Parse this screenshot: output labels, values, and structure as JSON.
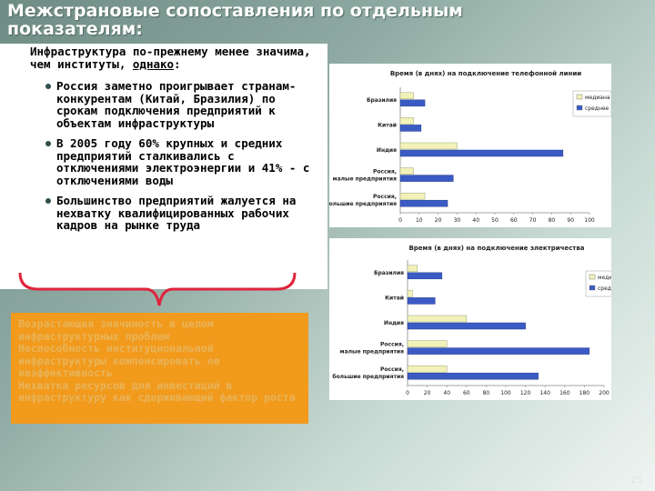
{
  "slide": {
    "title": "Межстрановые сопоставления по отдельным показателям:",
    "intro_before": "Инфраструктура по-прежнему менее значима, чем институты, ",
    "intro_underlined": "однако",
    "intro_after": ":",
    "bullets": [
      "Россия заметно проигрывает странам-конкурентам (Китай, Бразилия) по срокам подключения предприятий к объектам инфраструктуры",
      "В 2005 году 60% крупных и средних предприятий сталкивались с отключениями электроэнергии и 41% - с отключениями воды",
      "Большинство предприятий жалуется на нехватку квалифицированных рабочих кадров на рынке труда"
    ],
    "conclusion": [
      "Возрастающая значимость в целом инфраструктурных проблем",
      "Неспособность институциональной инфраструктуры компенсировать ее неэффективность",
      "Нехватка ресурсов для инвестиций в инфраструктуру как сдерживающий фактор роста"
    ],
    "page_number": "25",
    "colors": {
      "median": "#f2f2b8",
      "mean": "#3b5bc4",
      "orange": "#f29a1c"
    }
  },
  "chart_data": [
    {
      "type": "bar",
      "orientation": "horizontal",
      "title": "Время (в днях) на подключение телефонной линии",
      "categories": [
        "Бразилия",
        "Китай",
        "Индия",
        "Россия, малые предприятия",
        "Россия, большие предприятия"
      ],
      "series": [
        {
          "name": "медиана",
          "values": [
            7,
            7,
            30,
            7,
            13
          ]
        },
        {
          "name": "среднее",
          "values": [
            13,
            11,
            86,
            28,
            25
          ]
        }
      ],
      "xlim": [
        0,
        100
      ],
      "xticks": [
        0,
        10,
        20,
        30,
        40,
        50,
        60,
        70,
        80,
        90,
        100
      ],
      "legend_position": "right",
      "grid": false
    },
    {
      "type": "bar",
      "orientation": "horizontal",
      "title": "Время (в днях) на подключение электричества",
      "categories": [
        "Бразилия",
        "Китай",
        "Индия",
        "Россия, малые предприятия",
        "Россия, большие предприятия"
      ],
      "series": [
        {
          "name": "медиана",
          "values": [
            10,
            5,
            60,
            40,
            40
          ]
        },
        {
          "name": "среднее",
          "values": [
            35,
            28,
            120,
            185,
            133
          ]
        }
      ],
      "xlim": [
        0,
        200
      ],
      "xticks": [
        0,
        20,
        40,
        60,
        80,
        100,
        120,
        140,
        160,
        180,
        200
      ],
      "legend_position": "right",
      "grid": false
    }
  ]
}
